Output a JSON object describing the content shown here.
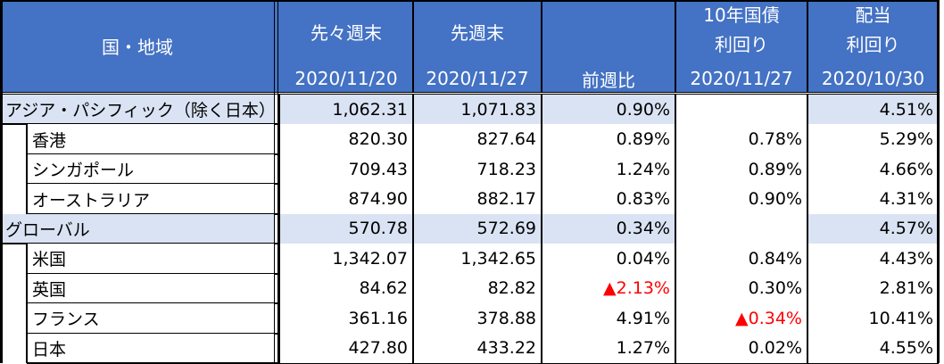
{
  "table": {
    "header": {
      "region": "国・地域",
      "columns": [
        {
          "title": "先々週末",
          "date": "2020/11/20"
        },
        {
          "title": "先週末",
          "date": "2020/11/27"
        },
        {
          "title": "前週比"
        },
        {
          "title": "10年国債",
          "title2": "利回り",
          "date": "2020/11/27"
        },
        {
          "title": "配当",
          "title2": "利回り",
          "date": "2020/10/30"
        }
      ]
    },
    "alert_color": "#ff0000",
    "rows": [
      {
        "label": "アジア・パシフィック（除く日本）",
        "group": true,
        "values": [
          "1,062.31",
          "1,071.83",
          "0.90%",
          null,
          "4.51%"
        ]
      },
      {
        "label": "香港",
        "group": false,
        "values": [
          "820.30",
          "827.64",
          "0.89%",
          "0.78%",
          "5.29%"
        ]
      },
      {
        "label": "シンガポール",
        "group": false,
        "values": [
          "709.43",
          "718.23",
          "1.24%",
          "0.89%",
          "4.66%"
        ]
      },
      {
        "label": "オーストラリア",
        "group": false,
        "values": [
          "874.90",
          "882.17",
          "0.83%",
          "0.90%",
          "4.31%"
        ]
      },
      {
        "label": "グローバル",
        "group": true,
        "values": [
          "570.78",
          "572.69",
          "0.34%",
          null,
          "4.57%"
        ]
      },
      {
        "label": "米国",
        "group": false,
        "values": [
          "1,342.07",
          "1,342.65",
          "0.04%",
          "0.84%",
          "4.43%"
        ]
      },
      {
        "label": "英国",
        "group": false,
        "values": [
          "84.62",
          "82.82",
          "▲2.13%",
          "0.30%",
          "2.81%"
        ],
        "alert": [
          2
        ]
      },
      {
        "label": "フランス",
        "group": false,
        "values": [
          "361.16",
          "378.88",
          "4.91%",
          "▲0.34%",
          "10.41%"
        ],
        "alert": [
          3
        ]
      },
      {
        "label": "日本",
        "group": false,
        "values": [
          "427.80",
          "433.22",
          "1.27%",
          "0.02%",
          "4.55%"
        ]
      }
    ]
  }
}
